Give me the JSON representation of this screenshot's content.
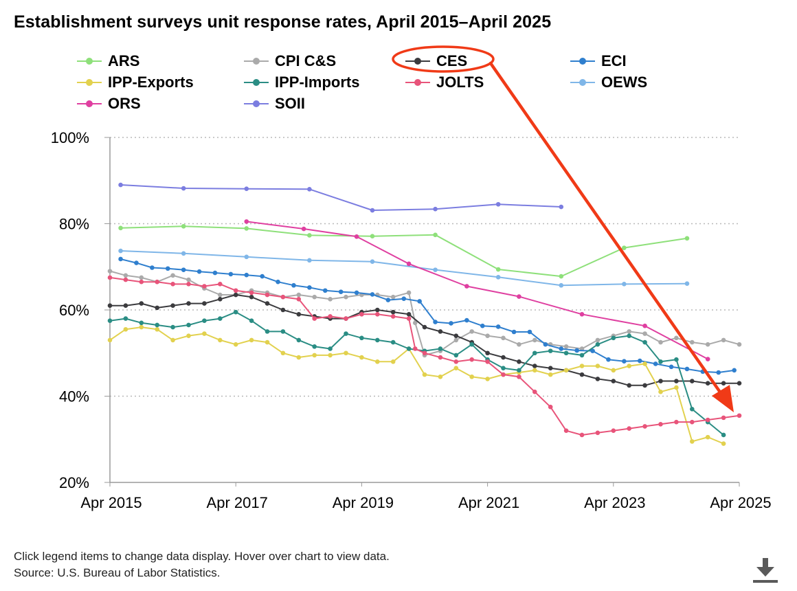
{
  "header": {
    "title": "Establishment surveys unit response rates, April 2015–April 2025"
  },
  "footer": {
    "note": "Click legend items to change data display. Hover over chart to view data.",
    "source": "Source: U.S. Bureau of Labor Statistics."
  },
  "download": {
    "icon": "download-icon"
  },
  "annotation": {
    "highlighted_series": "CES",
    "color": "#f03a17"
  },
  "chart_data": {
    "type": "line",
    "title": "Establishment surveys unit response rates, April 2015–April 2025",
    "xlabel": "",
    "ylabel": "",
    "x_range": [
      2015.25,
      2025.25
    ],
    "ylim": [
      20,
      100
    ],
    "y_ticks": [
      20,
      40,
      60,
      80,
      100
    ],
    "y_tick_labels": [
      "20%",
      "40%",
      "60%",
      "80%",
      "100%"
    ],
    "x_ticks": [
      2015.25,
      2017.25,
      2019.25,
      2021.25,
      2023.25,
      2025.25
    ],
    "x_tick_labels": [
      "Apr 2015",
      "Apr 2017",
      "Apr 2019",
      "Apr 2021",
      "Apr 2023",
      "Apr 2025"
    ],
    "grid": "horizontal dotted",
    "legend_position": "top",
    "series": [
      {
        "name": "ARS",
        "color": "#8ee07a",
        "x": [
          2015.42,
          2016.42,
          2017.42,
          2018.42,
          2019.42,
          2020.42,
          2021.42,
          2022.42,
          2023.42,
          2024.42
        ],
        "y": [
          79,
          79.4,
          78.9,
          77.3,
          77.1,
          77.4,
          69.4,
          67.8,
          74.4,
          76.6
        ]
      },
      {
        "name": "CPI C&S",
        "color": "#aaaaaa",
        "x": [
          2015.25,
          2015.5,
          2015.75,
          2016,
          2016.25,
          2016.5,
          2016.75,
          2017,
          2017.25,
          2017.5,
          2017.75,
          2018,
          2018.25,
          2018.5,
          2018.75,
          2019,
          2019.25,
          2019.5,
          2019.75,
          2020,
          2020.1,
          2020.25,
          2020.5,
          2020.75,
          2021,
          2021.25,
          2021.5,
          2021.75,
          2022,
          2022.25,
          2022.5,
          2022.75,
          2023,
          2023.25,
          2023.5,
          2023.75,
          2024,
          2024.25,
          2024.5,
          2024.75,
          2025,
          2025.25
        ],
        "y": [
          69,
          68,
          67.5,
          66.5,
          68,
          67,
          65,
          63.5,
          63.5,
          64.5,
          64,
          63,
          63.5,
          63,
          62.5,
          63,
          63.5,
          63.5,
          63,
          64,
          57,
          49.5,
          50.5,
          53,
          55,
          54,
          53.5,
          52,
          53,
          52,
          51.5,
          51,
          53,
          54,
          55,
          54.5,
          52.5,
          53.5,
          52.5,
          52,
          53,
          52
        ]
      },
      {
        "name": "CES",
        "color": "#3b3b3e",
        "x": [
          2015.25,
          2015.5,
          2015.75,
          2016,
          2016.25,
          2016.5,
          2016.75,
          2017,
          2017.25,
          2017.5,
          2017.75,
          2018,
          2018.25,
          2018.5,
          2018.75,
          2019,
          2019.25,
          2019.5,
          2019.75,
          2020,
          2020.25,
          2020.5,
          2020.75,
          2021,
          2021.25,
          2021.5,
          2021.75,
          2022,
          2022.25,
          2022.5,
          2022.75,
          2023,
          2023.25,
          2023.5,
          2023.75,
          2024,
          2024.25,
          2024.5,
          2024.75,
          2025,
          2025.25
        ],
        "y": [
          61,
          61,
          61.5,
          60.5,
          61,
          61.5,
          61.5,
          62.5,
          63.5,
          63,
          61.5,
          60,
          59,
          58.5,
          58,
          58,
          59.5,
          60,
          59.5,
          59,
          56,
          55,
          54,
          52.5,
          50,
          49,
          48,
          47,
          46.5,
          46,
          45,
          44,
          43.5,
          42.5,
          42.5,
          43.5,
          43.5,
          43.5,
          43,
          43,
          43
        ]
      },
      {
        "name": "ECI",
        "color": "#2f7fce",
        "x": [
          2015.42,
          2015.67,
          2015.92,
          2016.17,
          2016.42,
          2016.67,
          2016.92,
          2017.17,
          2017.42,
          2017.67,
          2017.92,
          2018.17,
          2018.42,
          2018.67,
          2018.92,
          2019.17,
          2019.42,
          2019.67,
          2019.92,
          2020.17,
          2020.42,
          2020.67,
          2020.92,
          2021.17,
          2021.42,
          2021.67,
          2021.92,
          2022.17,
          2022.42,
          2022.67,
          2022.92,
          2023.17,
          2023.42,
          2023.67,
          2023.92,
          2024.17,
          2024.42,
          2024.67,
          2024.92,
          2025.17
        ],
        "y": [
          71.8,
          70.9,
          69.8,
          69.6,
          69.3,
          68.9,
          68.6,
          68.3,
          68.1,
          67.8,
          66.5,
          65.7,
          65.2,
          64.5,
          64.2,
          64,
          63.6,
          62.3,
          62.6,
          62,
          57.2,
          56.9,
          57.6,
          56.3,
          56.1,
          54.9,
          54.9,
          52,
          51,
          50.6,
          50.5,
          48.5,
          48.1,
          48.2,
          47.5,
          46.8,
          46.3,
          45.7,
          45.5,
          46
        ]
      },
      {
        "name": "IPP-Exports",
        "color": "#e2d14e",
        "x": [
          2015.25,
          2015.5,
          2015.75,
          2016,
          2016.25,
          2016.5,
          2016.75,
          2017,
          2017.25,
          2017.5,
          2017.75,
          2018,
          2018.25,
          2018.5,
          2018.75,
          2019,
          2019.25,
          2019.5,
          2019.75,
          2020,
          2020.25,
          2020.5,
          2020.75,
          2021,
          2021.25,
          2021.5,
          2021.75,
          2022,
          2022.25,
          2022.5,
          2022.75,
          2023,
          2023.25,
          2023.5,
          2023.75,
          2024,
          2024.25,
          2024.5,
          2024.75,
          2025
        ],
        "y": [
          53,
          55.5,
          56,
          55.5,
          53,
          54,
          54.5,
          53,
          52,
          53,
          52.5,
          50,
          49,
          49.5,
          49.5,
          50,
          49,
          48,
          48,
          51,
          45,
          44.5,
          46.5,
          44.5,
          44,
          45,
          45.5,
          46,
          45,
          46,
          47,
          47,
          46,
          47,
          47.5,
          41,
          42,
          29.5,
          30.5,
          29
        ]
      },
      {
        "name": "IPP-Imports",
        "color": "#2a8d84",
        "x": [
          2015.25,
          2015.5,
          2015.75,
          2016,
          2016.25,
          2016.5,
          2016.75,
          2017,
          2017.25,
          2017.5,
          2017.75,
          2018,
          2018.25,
          2018.5,
          2018.75,
          2019,
          2019.25,
          2019.5,
          2019.75,
          2020,
          2020.25,
          2020.5,
          2020.75,
          2021,
          2021.25,
          2021.5,
          2021.75,
          2022,
          2022.25,
          2022.5,
          2022.75,
          2023,
          2023.25,
          2023.5,
          2023.75,
          2024,
          2024.25,
          2024.5,
          2024.75,
          2025
        ],
        "y": [
          57.5,
          58,
          57,
          56.5,
          56,
          56.5,
          57.5,
          58,
          59.5,
          57.5,
          55,
          55,
          53,
          51.5,
          51,
          54.5,
          53.5,
          53,
          52.5,
          51,
          50.5,
          51,
          49.5,
          52,
          48.5,
          46.5,
          46,
          50,
          50.5,
          50,
          49.5,
          52,
          53.5,
          54,
          52.5,
          48,
          48.5,
          37,
          34,
          31
        ]
      },
      {
        "name": "JOLTS",
        "color": "#e8547a",
        "x": [
          2015.25,
          2015.5,
          2015.75,
          2016,
          2016.25,
          2016.5,
          2016.75,
          2017,
          2017.25,
          2017.5,
          2017.75,
          2018,
          2018.25,
          2018.5,
          2018.75,
          2019,
          2019.25,
          2019.5,
          2019.75,
          2020,
          2020.1,
          2020.25,
          2020.5,
          2020.75,
          2021,
          2021.25,
          2021.5,
          2021.75,
          2022,
          2022.25,
          2022.5,
          2022.75,
          2023,
          2023.25,
          2023.5,
          2023.75,
          2024,
          2024.25,
          2024.5,
          2024.75,
          2025,
          2025.25
        ],
        "y": [
          67.5,
          67,
          66.5,
          66.5,
          66,
          66,
          65.5,
          66,
          64.5,
          64,
          63.5,
          63,
          62.5,
          58,
          58.5,
          58,
          59,
          59,
          58.5,
          58,
          51,
          50,
          49,
          48,
          48.5,
          48,
          45,
          44.5,
          41,
          37.5,
          32,
          31,
          31.5,
          32,
          32.5,
          33,
          33.5,
          34,
          34,
          34.5,
          35,
          35.5
        ]
      },
      {
        "name": "OEWS",
        "color": "#7fb6e8",
        "x": [
          2015.42,
          2016.42,
          2017.42,
          2018.42,
          2019.42,
          2020.42,
          2021.42,
          2022.42,
          2023.42,
          2024.42
        ],
        "y": [
          73.7,
          73.1,
          72.3,
          71.5,
          71.2,
          69.3,
          67.6,
          65.7,
          66,
          66.1
        ]
      },
      {
        "name": "ORS",
        "color": "#df3fa0",
        "x": [
          2017.42,
          2018.33,
          2019.17,
          2020.0,
          2020.92,
          2021.75,
          2022.75,
          2023.75,
          2024.75
        ],
        "y": [
          80.5,
          78.8,
          77,
          70.7,
          65.5,
          63.1,
          59,
          56.3,
          48.6
        ]
      },
      {
        "name": "SOII",
        "color": "#7b7de0",
        "x": [
          2015.42,
          2016.42,
          2017.42,
          2018.42,
          2019.42,
          2020.42,
          2021.42,
          2022.42
        ],
        "y": [
          89,
          88.2,
          88.1,
          88,
          83.1,
          83.4,
          84.5,
          83.9
        ]
      }
    ]
  }
}
